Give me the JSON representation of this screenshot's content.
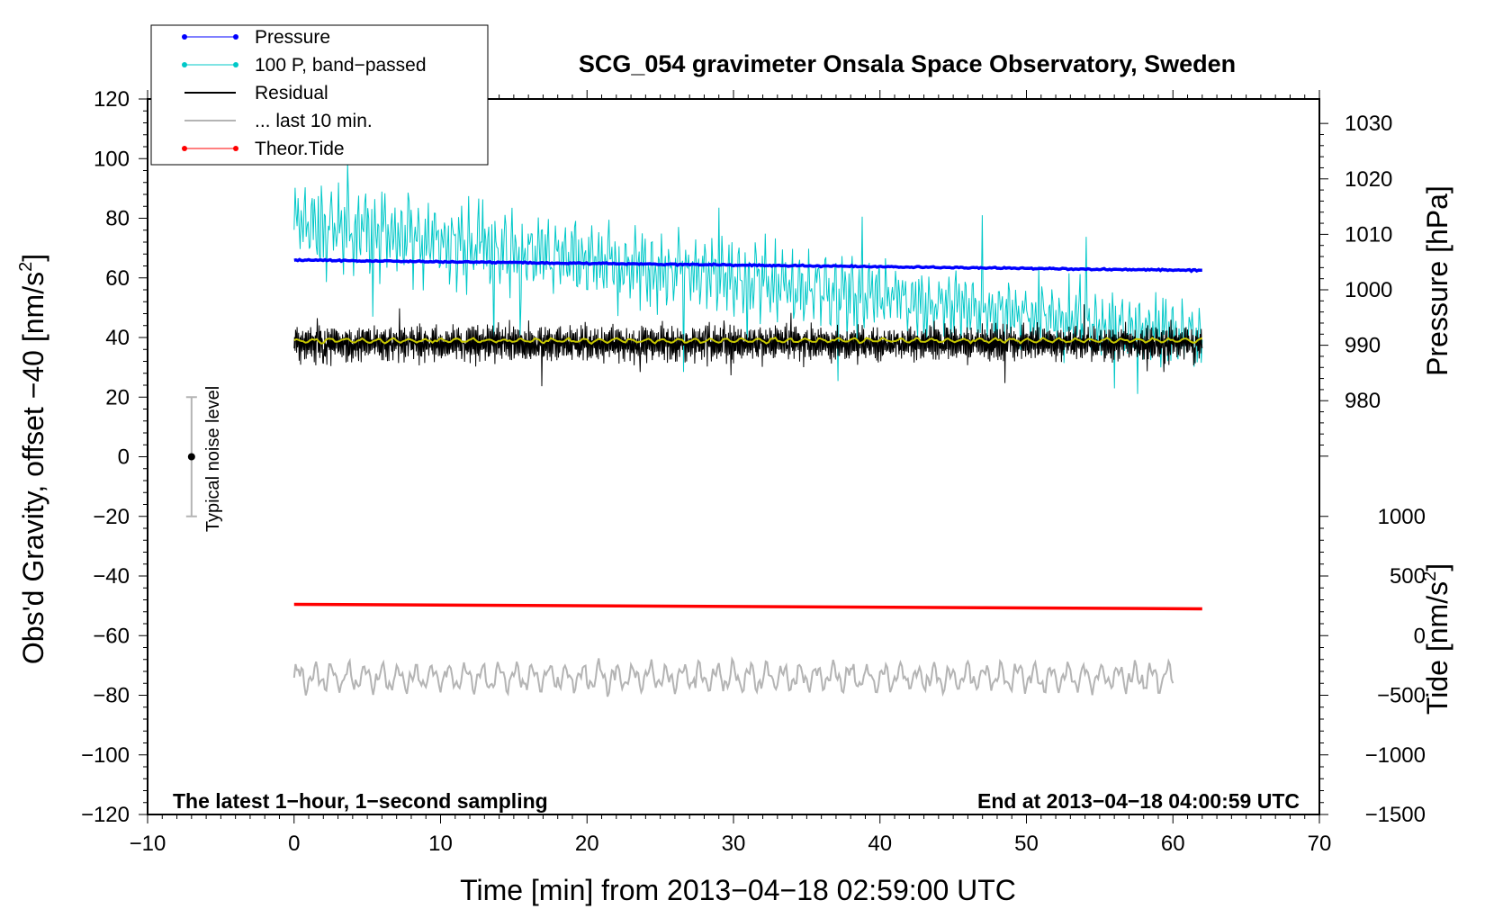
{
  "chart_data": {
    "type": "line",
    "title": "SCG_054 gravimeter Onsala Space Observatory, Sweden",
    "xlabel": "Time [min] from 2013−04−18 02:59:00 UTC",
    "ylabel_left": "Obs'd Gravity, offset −40 [nm/s",
    "ylabel_left_sup": "2",
    "ylabel_left_end": "]",
    "ylabel_right_pressure": "Pressure [hPa]",
    "ylabel_right_tide": "Tide [nm/s",
    "ylabel_right_tide_sup": "2",
    "ylabel_right_tide_end": "]",
    "xlim": [
      -10,
      70
    ],
    "ylim": [
      -120,
      120
    ],
    "xticks": [
      -10,
      0,
      10,
      20,
      30,
      40,
      50,
      60,
      70
    ],
    "xtick_labels": [
      "−10",
      "0",
      "10",
      "20",
      "30",
      "40",
      "50",
      "60",
      "70"
    ],
    "yticks": [
      -120,
      -100,
      -80,
      -60,
      -40,
      -20,
      0,
      20,
      40,
      60,
      80,
      100,
      120
    ],
    "ytick_labels": [
      "−120",
      "−100",
      "−80",
      "−60",
      "−40",
      "−20",
      "0",
      "20",
      "40",
      "60",
      "80",
      "100",
      "120"
    ],
    "pressure_axis": {
      "ticks": [
        980,
        990,
        1000,
        1010,
        1020,
        1030
      ],
      "tick_labels": [
        "980",
        "990",
        "1000",
        "1010",
        "1020",
        "1030"
      ],
      "gravity_at_1000": 56,
      "gravity_per_hpa": 1.86
    },
    "tide_axis": {
      "ticks": [
        -1500,
        -1000,
        -500,
        0,
        500,
        1000
      ],
      "tick_labels": [
        "−1500",
        "−1000",
        "−500",
        "0",
        "500",
        "1000"
      ],
      "gravity_at_0": -60,
      "gravity_per_unit": 0.04
    },
    "legend": [
      {
        "label": "Pressure",
        "color": "#0000ff",
        "marker": true
      },
      {
        "label": "100 P, band−passed",
        "color": "#00c8c8",
        "marker": true
      },
      {
        "label": "Residual",
        "color": "#000000",
        "marker": false
      },
      {
        "label": "... last 10 min.",
        "color": "#b4b4b4",
        "marker": false
      },
      {
        "label": "Theor.Tide",
        "color": "#ff0000",
        "marker": true
      }
    ],
    "series": [
      {
        "name": "Pressure",
        "color": "#0000ff",
        "start_x": 0,
        "end_x": 62,
        "start_y": 66,
        "end_y": 62.5
      },
      {
        "name": "100 P, band−passed",
        "color": "#00c8c8",
        "start_x": 0,
        "end_x": 62,
        "center_start": 78,
        "center_end": 40,
        "amp_start": 14,
        "amp_end": 10
      },
      {
        "name": "Residual",
        "color": "#000000",
        "start_x": 0,
        "end_x": 62,
        "center": 38,
        "amp": 6
      },
      {
        "name": "Residual smoothed",
        "color": "#c8c800",
        "start_x": 0,
        "end_x": 62,
        "center": 39,
        "amp": 1
      },
      {
        "name": "... last 10 min.",
        "color": "#b4b4b4",
        "start_x": 0,
        "end_x": 60,
        "center": -74,
        "amp": 6
      },
      {
        "name": "Theor.Tide",
        "color": "#ff0000",
        "start_x": 0,
        "end_x": 62,
        "start_y": -49.5,
        "end_y": -51
      }
    ],
    "noise_bar": {
      "label": "Typical noise level",
      "x": -7,
      "low": -20,
      "high": 20,
      "center": 0
    },
    "annotations": {
      "left_note": "The latest 1−hour, 1−second sampling",
      "right_note": "End at 2013−04−18 04:00:59 UTC"
    }
  }
}
